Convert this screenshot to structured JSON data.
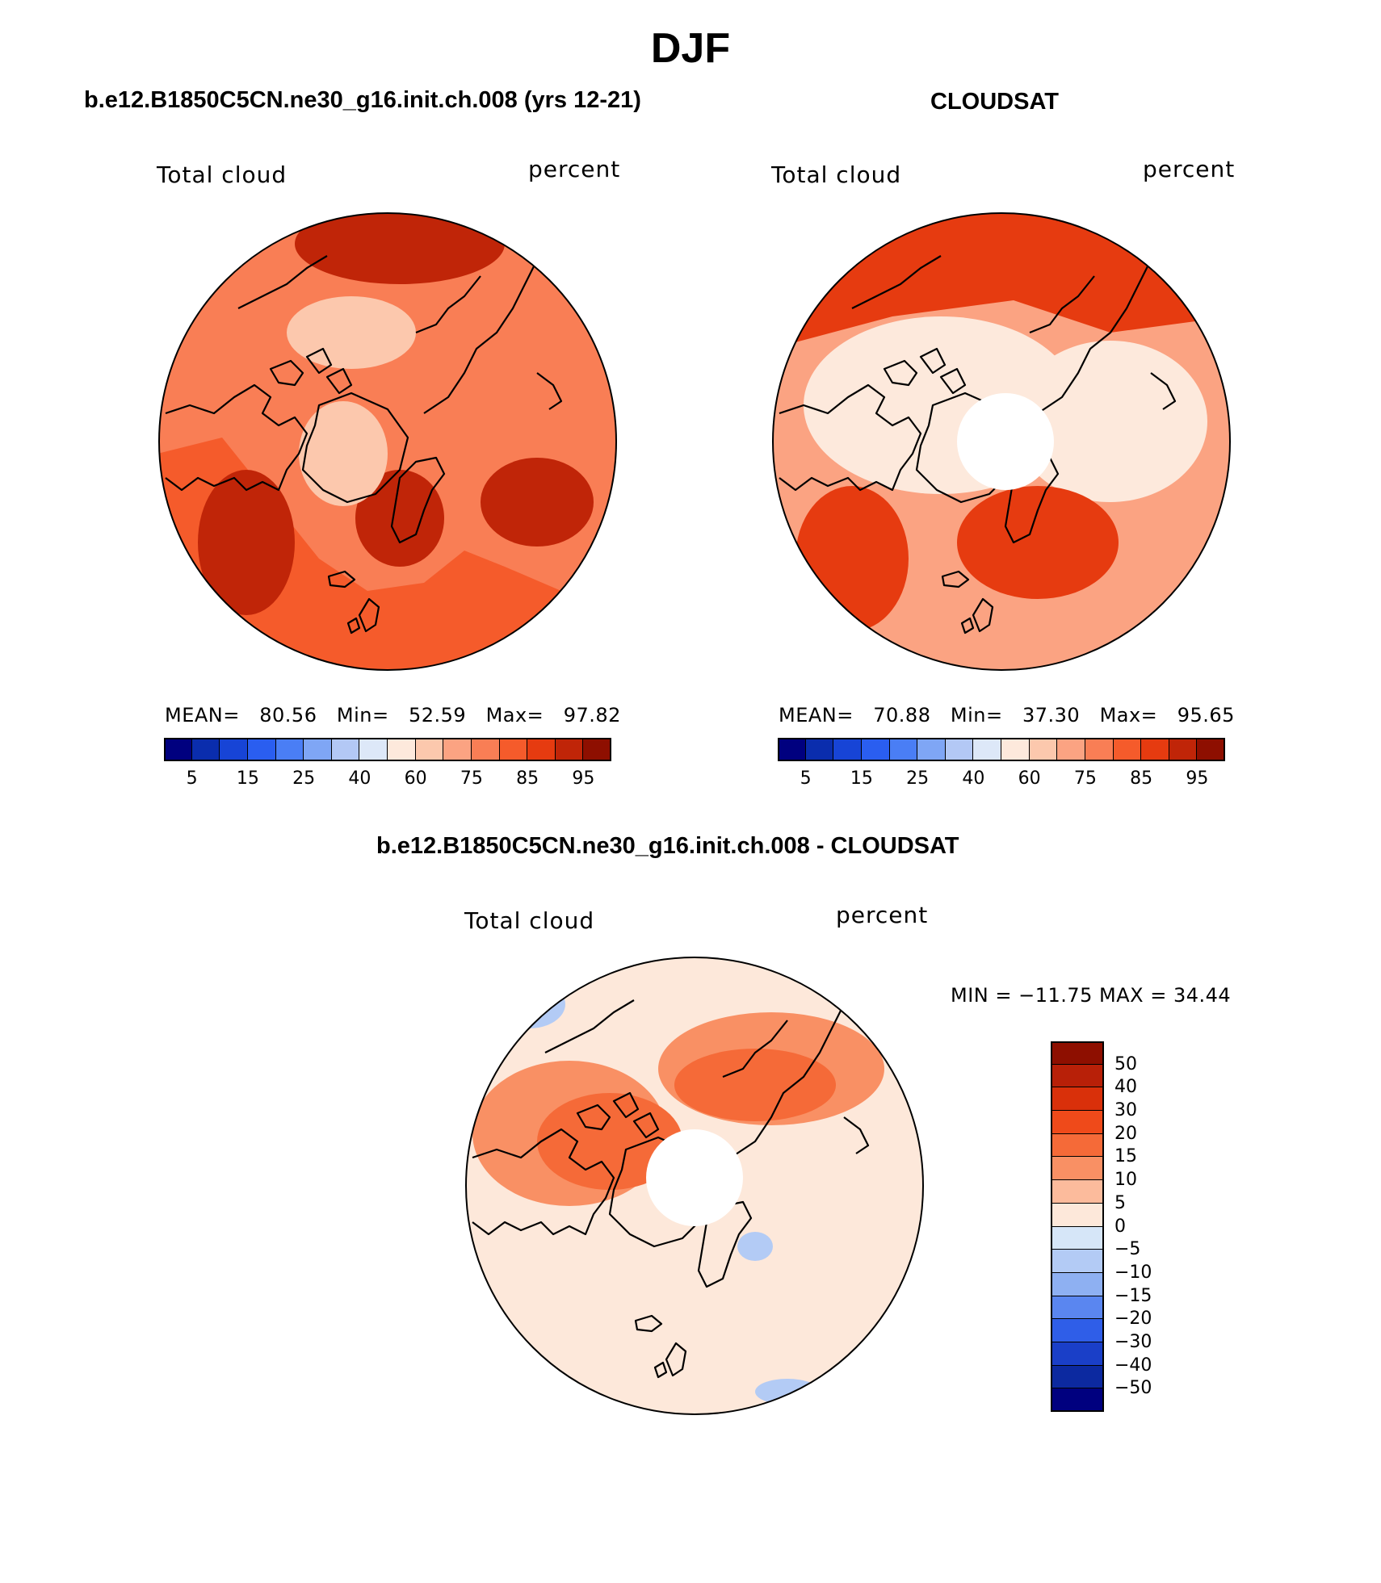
{
  "title": "DJF",
  "panels": {
    "model": {
      "header": "b.e12.B1850C5CN.ne30_g16.init.ch.008 (yrs 12-21)",
      "left_label": "Total cloud",
      "right_label": "percent",
      "stats": {
        "mean_label": "MEAN=",
        "mean": "80.56",
        "min_label": "Min=",
        "min": "52.59",
        "max_label": "Max=",
        "max": "97.82"
      }
    },
    "obs": {
      "header": "CLOUDSAT",
      "left_label": "Total cloud",
      "right_label": "percent",
      "stats": {
        "mean_label": "MEAN=",
        "mean": "70.88",
        "min_label": "Min=",
        "min": "37.30",
        "max_label": "Max=",
        "max": "95.65"
      }
    },
    "diff": {
      "header": "b.e12.B1850C5CN.ne30_g16.init.ch.008 - CLOUDSAT",
      "left_label": "Total cloud",
      "right_label": "percent",
      "minmax": "MIN = −11.75 MAX =   34.44"
    }
  },
  "colorbar_top": {
    "colors": [
      "#00007f",
      "#0a2dad",
      "#1744d6",
      "#2a5ef0",
      "#4a7ef5",
      "#7fa6f5",
      "#b3c8f5",
      "#dde8f8",
      "#fde9dc",
      "#fcc8ad",
      "#fba382",
      "#f97e55",
      "#f55b2b",
      "#e63b10",
      "#c02508",
      "#8e0f00"
    ],
    "tick_labels": [
      "5",
      "15",
      "25",
      "40",
      "60",
      "75",
      "85",
      "95"
    ]
  },
  "colorbar_diff": {
    "colors": [
      "#8e0f00",
      "#b82008",
      "#d9300a",
      "#ef4a1a",
      "#f56a38",
      "#f99064",
      "#fcbb9c",
      "#fde8da",
      "#d6e6f8",
      "#b3cbf5",
      "#8eb0f2",
      "#5a86f0",
      "#2f5ee8",
      "#1a3fc8",
      "#0c29a0",
      "#00007f"
    ],
    "tick_labels": [
      "50",
      "40",
      "30",
      "20",
      "15",
      "10",
      "5",
      "0",
      "−5",
      "−10",
      "−15",
      "−20",
      "−30",
      "−40",
      "−50"
    ]
  },
  "map_colors": {
    "model_base": "#f97e55",
    "model_dark": "#c02508",
    "model_mid": "#f55b2b",
    "model_light": "#fcc8ad",
    "obs_base": "#fba382",
    "obs_dark": "#e63b10",
    "obs_light": "#fde9dc",
    "diff_base": "#fde8da",
    "diff_pos": "#f99064",
    "diff_strong": "#f56a38",
    "diff_neg": "#b3cbf5",
    "coast": "#000000"
  }
}
